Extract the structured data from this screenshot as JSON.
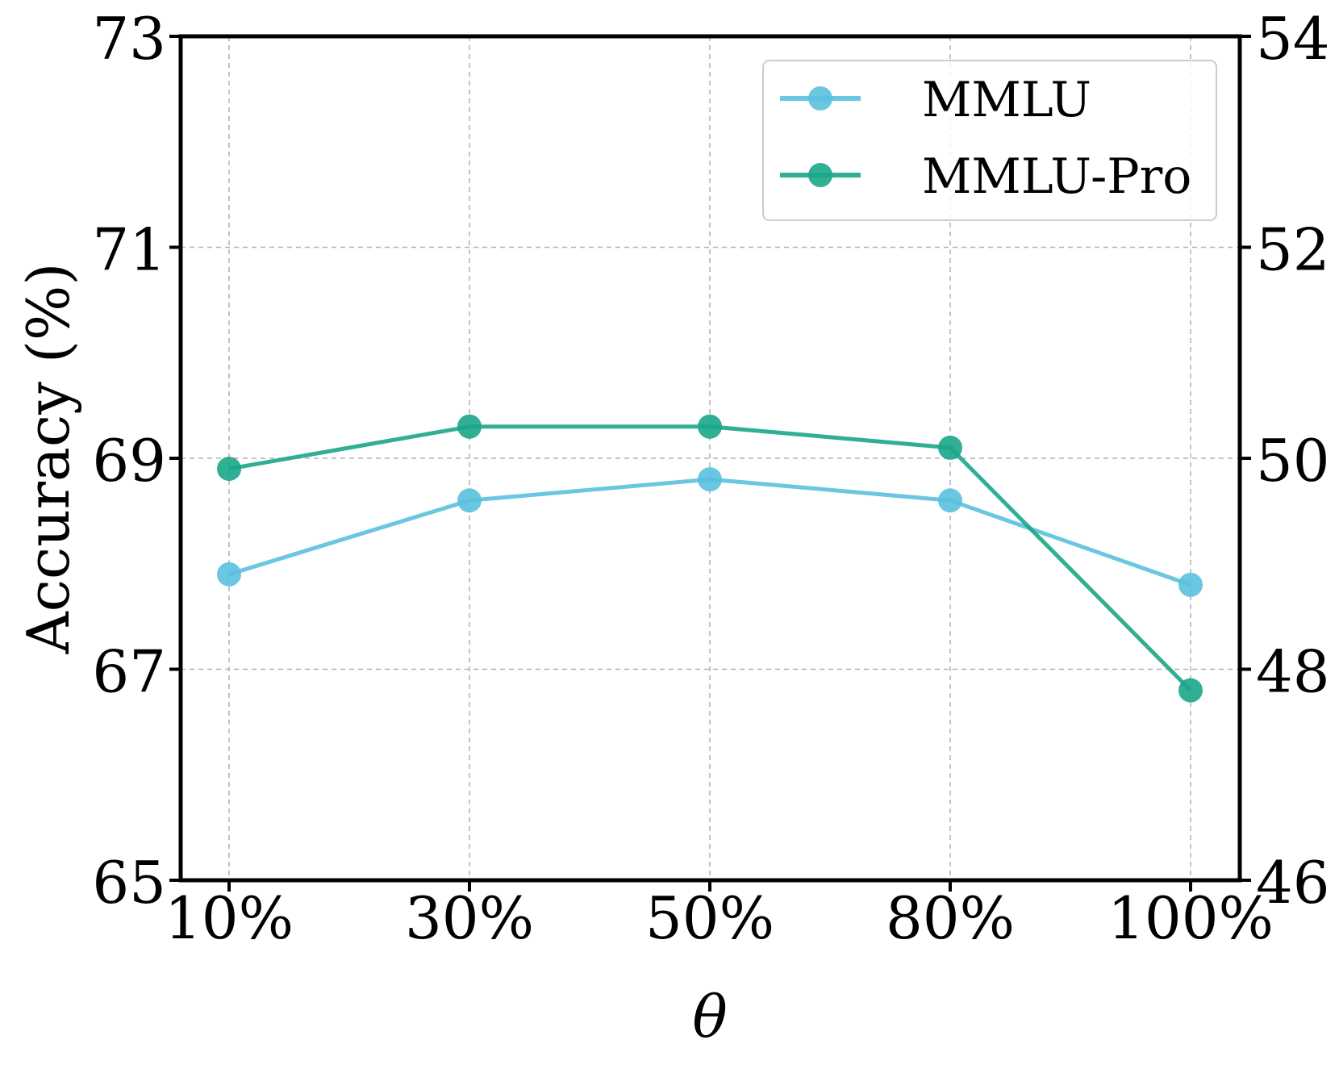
{
  "chart_data": {
    "type": "line",
    "title": "",
    "xlabel": "θ",
    "ylabel": "Accuracy (%)",
    "categories": [
      "10%",
      "30%",
      "50%",
      "80%",
      "100%"
    ],
    "left_axis": {
      "ylim": [
        65,
        73
      ],
      "ticks": [
        65,
        67,
        69,
        71,
        73
      ]
    },
    "right_axis": {
      "ylim": [
        46,
        54
      ],
      "ticks": [
        46,
        48,
        50,
        52,
        54
      ]
    },
    "grid": true,
    "legend_position": "top-right",
    "series": [
      {
        "name": "MMLU",
        "axis": "left",
        "color": "#5bc0de",
        "values": [
          67.9,
          68.6,
          68.8,
          68.6,
          67.8
        ]
      },
      {
        "name": "MMLU-Pro",
        "axis": "right",
        "color": "#1aa68a",
        "values": [
          49.9,
          50.3,
          50.3,
          50.1,
          47.8
        ]
      }
    ]
  }
}
